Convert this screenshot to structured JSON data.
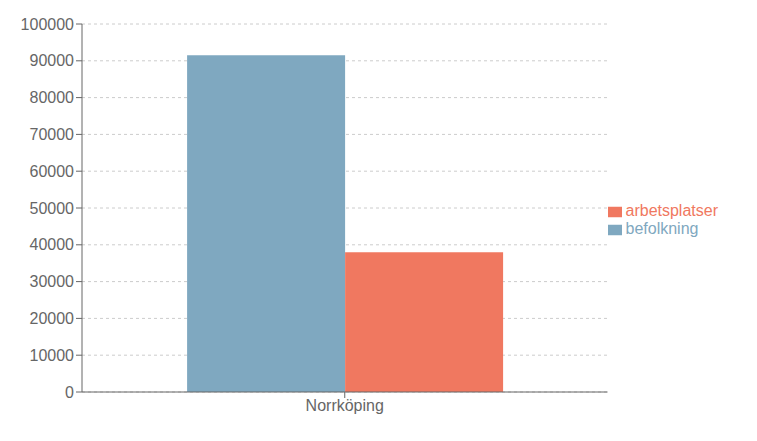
{
  "chart_data": {
    "type": "bar",
    "categories": [
      "Norrköping"
    ],
    "series": [
      {
        "name": "befolkning",
        "color": "#7fa8c0",
        "values": [
          91500
        ]
      },
      {
        "name": "arbetsplatser",
        "color": "#f07860",
        "values": [
          38000
        ]
      }
    ],
    "ylim": [
      0,
      100000
    ],
    "yticks": [
      0,
      10000,
      20000,
      30000,
      40000,
      50000,
      60000,
      70000,
      80000,
      90000,
      100000
    ],
    "grid": true,
    "legend": "right"
  }
}
